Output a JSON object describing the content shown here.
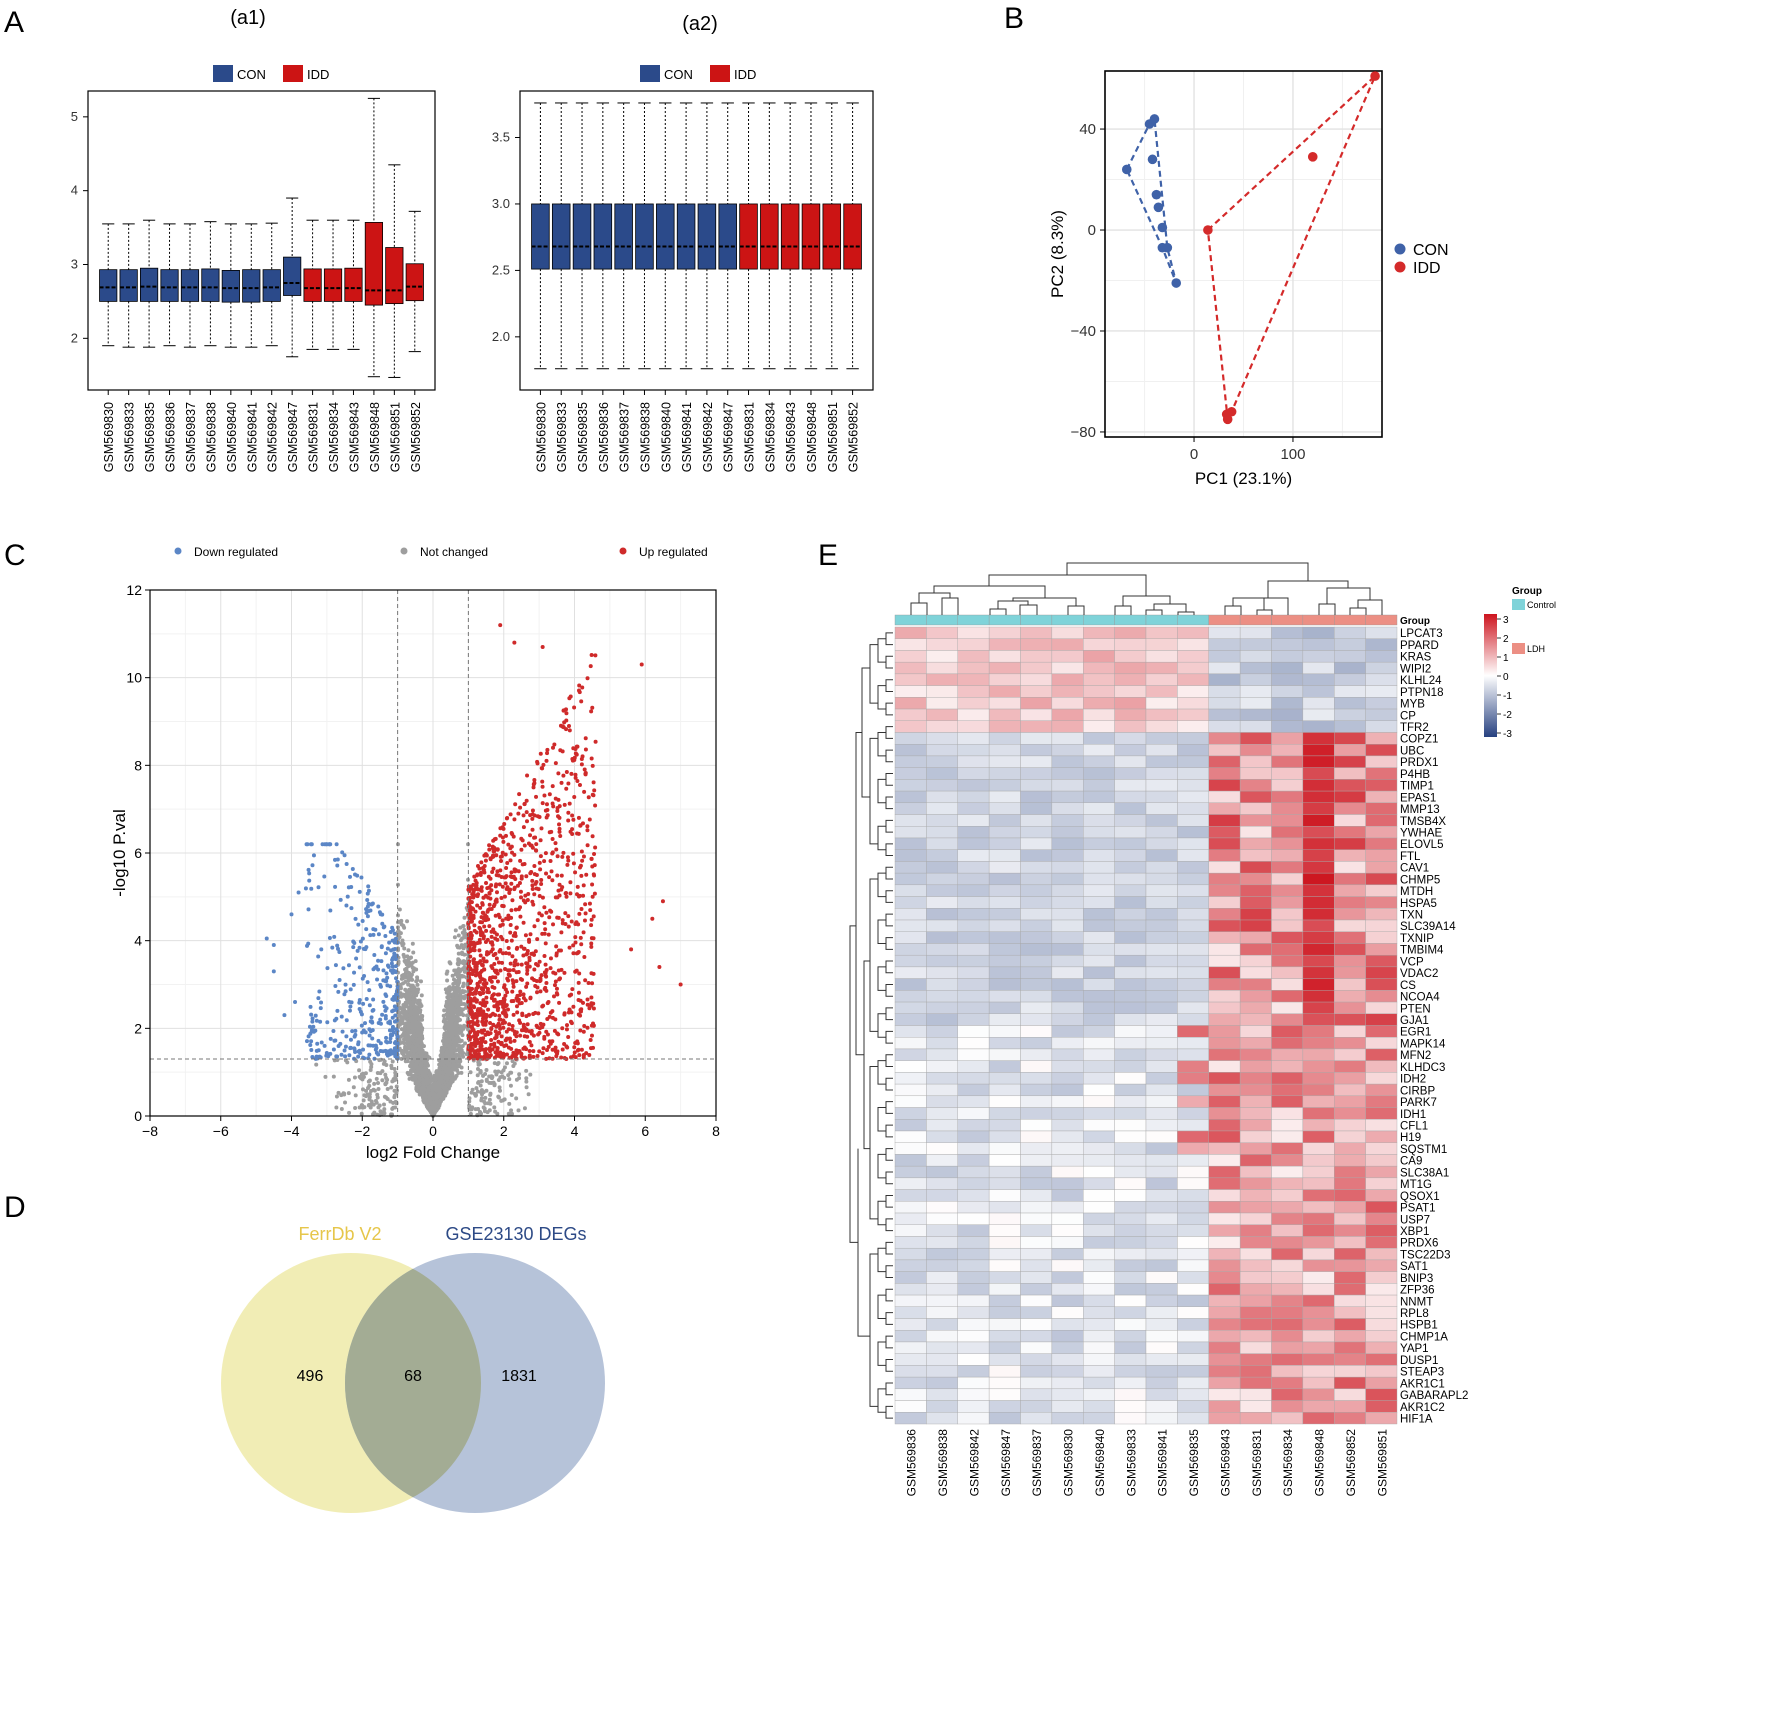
{
  "panels": {
    "A": "A",
    "B": "B",
    "C": "C",
    "D": "D",
    "E": "E",
    "a1_title": "(a1)",
    "a2_title": "(a2)"
  },
  "colors": {
    "con": "#2b4a8a",
    "idd": "#cc1414",
    "pca_con": "#3f62a8",
    "pca_idd": "#d42a2a",
    "down": "#5b86c6",
    "nochange": "#9e9e9e",
    "up": "#cf2a2a",
    "venn_a": "#eeeaa8",
    "venn_b": "#a9b9d2",
    "venn_label_a": "#e6c64a",
    "venn_label_b": "#2d4a86",
    "hm_control": "#7fd3d9",
    "hm_ldh": "#ec8f84"
  },
  "chart_data": [
    {
      "id": "a1",
      "type": "box",
      "title": "(a1)",
      "legend": [
        "CON",
        "IDD"
      ],
      "ylim": [
        1.3,
        5.35
      ],
      "yticks": [
        2,
        3,
        4,
        5
      ],
      "samples": [
        "GSM569830",
        "GSM569833",
        "GSM569835",
        "GSM569836",
        "GSM569837",
        "GSM569838",
        "GSM569840",
        "GSM569841",
        "GSM569842",
        "GSM569847",
        "GSM569831",
        "GSM569834",
        "GSM569843",
        "GSM569848",
        "GSM569851",
        "GSM569852"
      ],
      "groups": [
        "CON",
        "CON",
        "CON",
        "CON",
        "CON",
        "CON",
        "CON",
        "CON",
        "CON",
        "CON",
        "IDD",
        "IDD",
        "IDD",
        "IDD",
        "IDD",
        "IDD"
      ],
      "boxes": [
        [
          1.9,
          2.5,
          2.69,
          2.93,
          3.55
        ],
        [
          1.88,
          2.5,
          2.69,
          2.93,
          3.55
        ],
        [
          1.88,
          2.5,
          2.7,
          2.95,
          3.6
        ],
        [
          1.9,
          2.5,
          2.69,
          2.93,
          3.55
        ],
        [
          1.88,
          2.5,
          2.69,
          2.93,
          3.55
        ],
        [
          1.9,
          2.5,
          2.69,
          2.94,
          3.58
        ],
        [
          1.88,
          2.49,
          2.68,
          2.92,
          3.55
        ],
        [
          1.88,
          2.49,
          2.68,
          2.93,
          3.55
        ],
        [
          1.9,
          2.5,
          2.69,
          2.93,
          3.56
        ],
        [
          1.75,
          2.58,
          2.75,
          3.1,
          3.9
        ],
        [
          1.85,
          2.5,
          2.68,
          2.94,
          3.6
        ],
        [
          1.85,
          2.5,
          2.68,
          2.94,
          3.6
        ],
        [
          1.85,
          2.5,
          2.68,
          2.95,
          3.6
        ],
        [
          1.48,
          2.45,
          2.65,
          3.57,
          5.25
        ],
        [
          1.47,
          2.47,
          2.65,
          3.23,
          4.35
        ],
        [
          1.82,
          2.51,
          2.7,
          3.01,
          3.72
        ]
      ]
    },
    {
      "id": "a2",
      "type": "box",
      "title": "(a2)",
      "legend": [
        "CON",
        "IDD"
      ],
      "ylim": [
        1.6,
        3.85
      ],
      "yticks": [
        2.0,
        2.5,
        3.0,
        3.5
      ],
      "samples": [
        "GSM569830",
        "GSM569833",
        "GSM569835",
        "GSM569836",
        "GSM569837",
        "GSM569838",
        "GSM569840",
        "GSM569841",
        "GSM569842",
        "GSM569847",
        "GSM569831",
        "GSM569834",
        "GSM569843",
        "GSM569848",
        "GSM569851",
        "GSM569852"
      ],
      "groups": [
        "CON",
        "CON",
        "CON",
        "CON",
        "CON",
        "CON",
        "CON",
        "CON",
        "CON",
        "CON",
        "IDD",
        "IDD",
        "IDD",
        "IDD",
        "IDD",
        "IDD"
      ],
      "boxes": [
        [
          1.76,
          2.51,
          2.68,
          3.0,
          3.76
        ],
        [
          1.76,
          2.51,
          2.68,
          3.0,
          3.76
        ],
        [
          1.76,
          2.51,
          2.68,
          3.0,
          3.76
        ],
        [
          1.76,
          2.51,
          2.68,
          3.0,
          3.76
        ],
        [
          1.76,
          2.51,
          2.68,
          3.0,
          3.76
        ],
        [
          1.76,
          2.51,
          2.68,
          3.0,
          3.76
        ],
        [
          1.76,
          2.51,
          2.68,
          3.0,
          3.76
        ],
        [
          1.76,
          2.51,
          2.68,
          3.0,
          3.76
        ],
        [
          1.76,
          2.51,
          2.68,
          3.0,
          3.76
        ],
        [
          1.76,
          2.51,
          2.68,
          3.0,
          3.76
        ],
        [
          1.76,
          2.51,
          2.68,
          3.0,
          3.76
        ],
        [
          1.76,
          2.51,
          2.68,
          3.0,
          3.76
        ],
        [
          1.76,
          2.51,
          2.68,
          3.0,
          3.76
        ],
        [
          1.76,
          2.51,
          2.68,
          3.0,
          3.76
        ],
        [
          1.76,
          2.51,
          2.68,
          3.0,
          3.76
        ],
        [
          1.76,
          2.51,
          2.68,
          3.0,
          3.76
        ]
      ]
    },
    {
      "id": "pca",
      "type": "scatter",
      "xlabel": "PC1 (23.1%)",
      "ylabel": "PC2 (8.3%)",
      "xlim": [
        -90,
        190
      ],
      "ylim": [
        -82,
        63
      ],
      "xticks": [
        0,
        100
      ],
      "yticks": [
        40,
        0,
        -40,
        -80
      ],
      "legend": [
        "CON",
        "IDD"
      ],
      "series": [
        {
          "name": "CON",
          "points": [
            [
              -45,
              42
            ],
            [
              -40,
              44
            ],
            [
              -42,
              28
            ],
            [
              -68,
              24
            ],
            [
              -38,
              14
            ],
            [
              -36,
              9
            ],
            [
              -32,
              1
            ],
            [
              -32,
              -7
            ],
            [
              -27,
              -7
            ],
            [
              -18,
              -21
            ]
          ],
          "hull": [
            [
              -68,
              24
            ],
            [
              -45,
              42
            ],
            [
              -40,
              44
            ],
            [
              -27,
              -7
            ],
            [
              -18,
              -21
            ],
            [
              -32,
              -7
            ]
          ]
        },
        {
          "name": "IDD",
          "points": [
            [
              183,
              61
            ],
            [
              120,
              29
            ],
            [
              14,
              0
            ],
            [
              33,
              -73
            ],
            [
              38,
              -72
            ],
            [
              34,
              -75
            ]
          ],
          "hull": [
            [
              14,
              0
            ],
            [
              183,
              61
            ],
            [
              38,
              -72
            ],
            [
              34,
              -75
            ]
          ]
        }
      ]
    },
    {
      "id": "volcano",
      "type": "scatter",
      "xlabel": "log2 Fold Change",
      "ylabel": "-log10 P.val",
      "xlim": [
        -8,
        8
      ],
      "ylim": [
        0,
        12
      ],
      "xticks": [
        -8,
        -6,
        -4,
        -2,
        0,
        2,
        4,
        6,
        8
      ],
      "yticks": [
        0,
        2,
        4,
        6,
        8,
        10,
        12
      ],
      "thresholds": {
        "fc": 1,
        "p": 1.3
      },
      "legend": [
        "Down regulated",
        "Not changed",
        "Up regulated"
      ],
      "counts": {
        "down": 380,
        "nochange": 4200,
        "up": 1300
      }
    },
    {
      "id": "venn",
      "type": "venn",
      "sets": [
        {
          "name": "FerrDb V2",
          "only": "496"
        },
        {
          "name": "GSE23130 DEGs",
          "only": "1831"
        }
      ],
      "intersection": "68"
    },
    {
      "id": "heatmap",
      "type": "heatmap",
      "samples": [
        "GSM569836",
        "GSM569838",
        "GSM569842",
        "GSM569847",
        "GSM569837",
        "GSM569830",
        "GSM569840",
        "GSM569833",
        "GSM569841",
        "GSM569835",
        "GSM569843",
        "GSM569831",
        "GSM569834",
        "GSM569848",
        "GSM569852",
        "GSM569851"
      ],
      "sample_groups": [
        "Control",
        "Control",
        "Control",
        "Control",
        "Control",
        "Control",
        "Control",
        "Control",
        "Control",
        "Control",
        "LDH",
        "LDH",
        "LDH",
        "LDH",
        "LDH",
        "LDH"
      ],
      "group_track_label": "Group",
      "legend_title": "Group",
      "legend_items": [
        "Control",
        "LDH"
      ],
      "scale_ticks": [
        "3",
        "2",
        "1",
        "0",
        "-1",
        "-2",
        "-3"
      ],
      "genes": [
        "LPCAT3",
        "PPARD",
        "KRAS",
        "WIPI2",
        "KLHL24",
        "PTPN18",
        "MYB",
        "CP",
        "TFR2",
        "COPZ1",
        "UBC",
        "PRDX1",
        "P4HB",
        "TIMP1",
        "EPAS1",
        "MMP13",
        "TMSB4X",
        "YWHAE",
        "ELOVL5",
        "FTL",
        "CAV1",
        "CHMP5",
        "MTDH",
        "HSPA5",
        "TXN",
        "SLC39A14",
        "TXNIP",
        "TMBIM4",
        "VCP",
        "VDAC2",
        "CS",
        "NCOA4",
        "PTEN",
        "GJA1",
        "EGR1",
        "MAPK14",
        "MFN2",
        "KLHDC3",
        "IDH2",
        "CIRBP",
        "PARK7",
        "IDH1",
        "CFL1",
        "H19",
        "SQSTM1",
        "CA9",
        "SLC38A1",
        "MT1G",
        "QSOX1",
        "PSAT1",
        "USP7",
        "XBP1",
        "PRDX6",
        "TSC22D3",
        "SAT1",
        "BNIP3",
        "ZFP36",
        "NNMT",
        "RPL8",
        "HSPB1",
        "CHMP1A",
        "YAP1",
        "DUSP1",
        "STEAP3",
        "AKR1C1",
        "GABARAPL2",
        "AKR1C2",
        "HIF1A"
      ]
    }
  ]
}
